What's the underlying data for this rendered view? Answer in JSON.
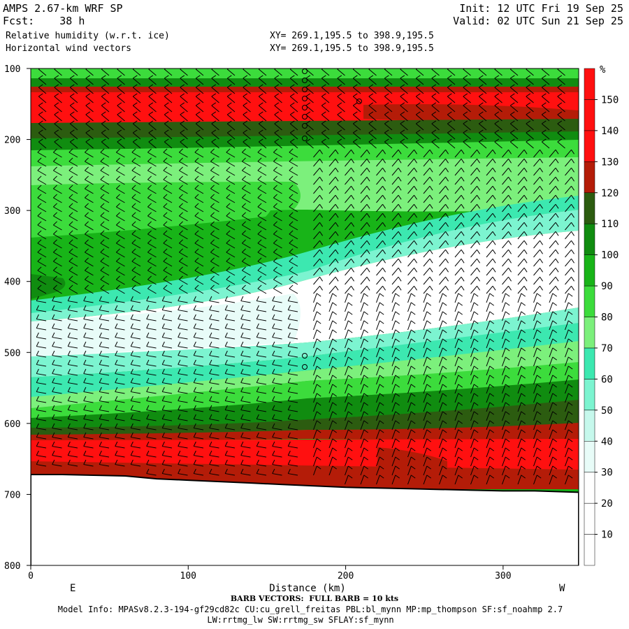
{
  "header": {
    "title": "AMPS 2.67-km WRF SP",
    "fcst_label": "Fcst:",
    "fcst_value": "38 h",
    "field1": "Relative humidity (w.r.t. ice)",
    "field2": "Horizontal wind vectors",
    "init": "Init: 12 UTC Fri 19 Sep 25",
    "valid": "Valid: 02 UTC Sun 21 Sep 25",
    "xy1": "XY= 269.1,195.5 to 398.9,195.5",
    "xy2": "XY= 269.1,195.5 to 398.9,195.5"
  },
  "footer": {
    "barb_caption": "BARB VECTORS:  FULL BARB = 10 kts",
    "model_info": "Model Info: MPASv8.2.3-194-gf29cd82c CU:cu_grell_freitas PBL:bl_mynn MP:mp_thompson SF:sf_noahmp 2.7",
    "model_info2": "LW:rrtmg_lw SW:rrtmg_sw SFLAY:sf_mynn"
  },
  "chart_data": {
    "type": "heatmap",
    "xlabel": "Distance (km)",
    "x_left_label": "E",
    "x_right_label": "W",
    "xlim": [
      0,
      348
    ],
    "ylim": [
      800,
      100
    ],
    "x_ticks": [
      0,
      100,
      200,
      300
    ],
    "y_ticks": [
      100,
      200,
      300,
      400,
      500,
      600,
      700,
      800
    ],
    "colorbar": {
      "unit": "%",
      "levels": [
        10,
        20,
        30,
        40,
        50,
        60,
        70,
        80,
        90,
        100,
        110,
        120,
        130,
        140,
        150
      ],
      "colors": [
        "#ffffff",
        "#ffffff",
        "#ffffff",
        "#e8fcf8",
        "#c6f8ec",
        "#7cf4d0",
        "#3ce8b0",
        "#7cf07c",
        "#3cdc3c",
        "#18b418",
        "#108c10",
        "#2c5c10",
        "#b41c08",
        "#ff1010",
        "#ff1010",
        "#ff1010"
      ]
    },
    "terrain_pressure": [
      [
        0,
        672
      ],
      [
        20,
        672
      ],
      [
        40,
        673
      ],
      [
        60,
        674
      ],
      [
        80,
        678
      ],
      [
        100,
        680
      ],
      [
        120,
        682
      ],
      [
        140,
        684
      ],
      [
        160,
        686
      ],
      [
        180,
        688
      ],
      [
        200,
        690
      ],
      [
        220,
        691
      ],
      [
        240,
        692
      ],
      [
        260,
        693
      ],
      [
        280,
        694
      ],
      [
        300,
        695
      ],
      [
        320,
        695
      ],
      [
        348,
        697
      ]
    ]
  }
}
